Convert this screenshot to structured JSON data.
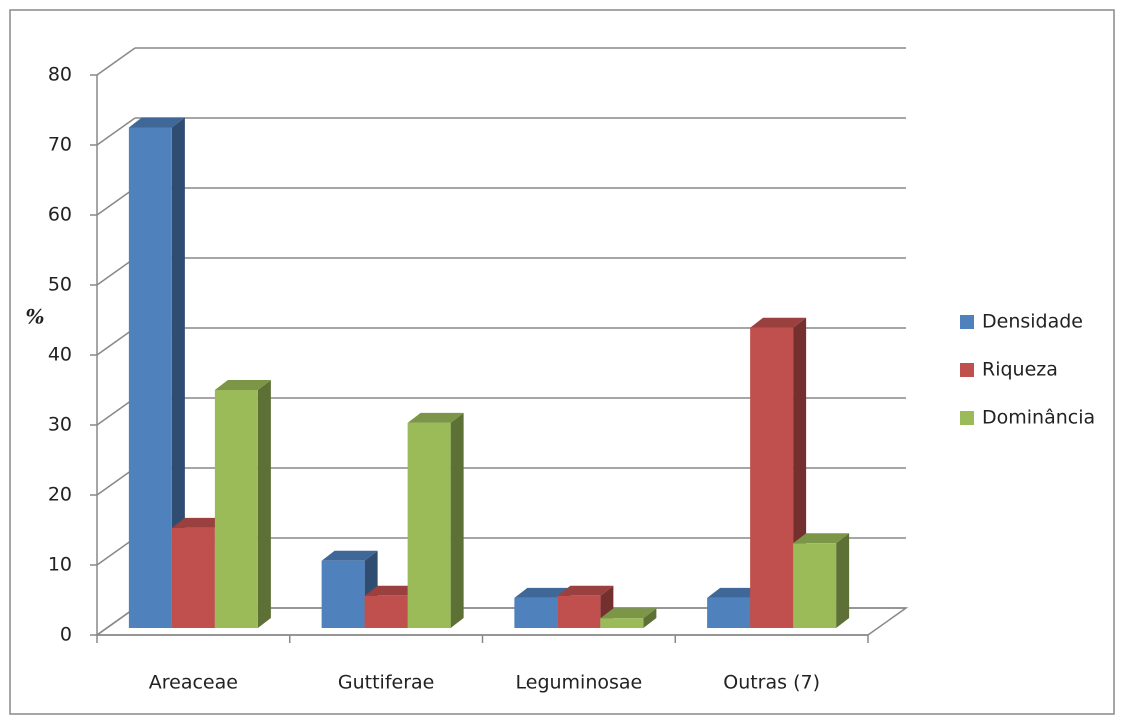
{
  "chart_data": {
    "type": "bar",
    "y_label": "%",
    "categories": [
      "Areaceae",
      "Guttiferae",
      "Leguminosae",
      "Outras (7)"
    ],
    "series": [
      {
        "name": "Densidade",
        "color": "#4f81bd",
        "values": [
          71.5,
          9.6,
          4.3,
          4.3
        ]
      },
      {
        "name": "Riqueza",
        "color": "#c0504d",
        "values": [
          14.3,
          4.6,
          4.6,
          42.9
        ]
      },
      {
        "name": "Dominância",
        "color": "#9bbb59",
        "values": [
          34,
          29.3,
          1.4,
          12.1
        ]
      }
    ],
    "ylim": [
      0,
      80
    ],
    "yticks": [
      0,
      10,
      20,
      30,
      40,
      50,
      60,
      70,
      80
    ],
    "grid": true,
    "legend": "right"
  }
}
